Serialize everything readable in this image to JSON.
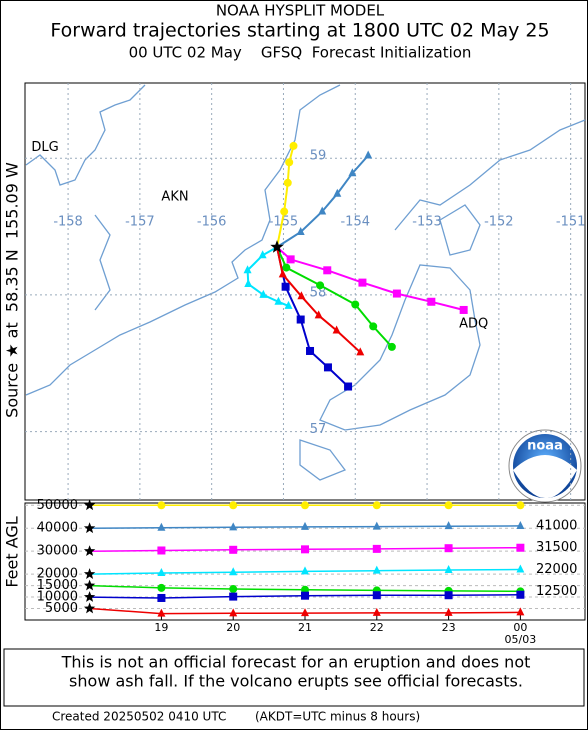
{
  "header": {
    "title": "NOAA HYSPLIT MODEL",
    "subtitle": "Forward trajectories starting at 1800 UTC 02 May 25",
    "init": "00 UTC 02 May    GFSQ  Forecast Initialization",
    "source": "Source ★ at  58.35 N  155.09 W"
  },
  "logo": "noaa",
  "chart_data": [
    {
      "type": "trajectory_map",
      "xlim": [
        -158.6,
        -150.8
      ],
      "ylim": [
        56.5,
        59.55
      ],
      "xticks": [
        -158,
        -157,
        -156,
        -155,
        -154,
        -153,
        -152,
        -151
      ],
      "yticks": [
        57,
        58,
        59
      ],
      "places": [
        {
          "name": "DLG",
          "lon": -158.46,
          "lat": 59.04
        },
        {
          "name": "AKN",
          "lon": -156.65,
          "lat": 58.68
        },
        {
          "name": "ADQ",
          "lon": -152.49,
          "lat": 57.75
        }
      ],
      "series": [
        {
          "color": "#ffee00",
          "marker": "circle",
          "lon": [
            -155.09,
            -154.99,
            -154.94,
            -154.92,
            -154.86
          ],
          "lat": [
            58.35,
            58.61,
            58.82,
            58.97,
            59.09
          ]
        },
        {
          "color": "#3f86c4",
          "marker": "triangle",
          "lon": [
            -155.09,
            -154.76,
            -154.46,
            -154.25,
            -154.04,
            -153.82
          ],
          "lat": [
            58.35,
            58.46,
            58.61,
            58.74,
            58.89,
            59.02
          ]
        },
        {
          "color": "#ff00ff",
          "marker": "square",
          "lon": [
            -155.09,
            -154.9,
            -154.39,
            -153.9,
            -153.42,
            -152.94,
            -152.49
          ],
          "lat": [
            58.35,
            58.26,
            58.18,
            58.09,
            58.01,
            57.95,
            57.89
          ]
        },
        {
          "color": "#00e5ff",
          "marker": "triangle",
          "lon": [
            -155.09,
            -155.29,
            -155.5,
            -155.49,
            -155.28,
            -155.07,
            -154.93
          ],
          "lat": [
            58.35,
            58.29,
            58.18,
            58.08,
            58.0,
            57.95,
            57.92
          ]
        },
        {
          "color": "#00dd00",
          "marker": "circle",
          "lon": [
            -155.09,
            -154.96,
            -154.49,
            -154.0,
            -153.75,
            -153.49
          ],
          "lat": [
            58.35,
            58.2,
            58.07,
            57.93,
            57.77,
            57.62
          ]
        },
        {
          "color": "#0000cc",
          "marker": "square",
          "lon": [
            -155.09,
            -154.97,
            -154.76,
            -154.63,
            -154.38,
            -154.1
          ],
          "lat": [
            58.35,
            58.06,
            57.82,
            57.59,
            57.47,
            57.33
          ]
        },
        {
          "color": "#ee0000",
          "marker": "triangle",
          "lon": [
            -155.09,
            -155.01,
            -154.75,
            -154.51,
            -154.26,
            -153.93
          ],
          "lat": [
            58.35,
            58.15,
            57.99,
            57.85,
            57.74,
            57.58
          ]
        }
      ]
    },
    {
      "type": "line",
      "ylabel": "Feet AGL",
      "ylim": [
        0,
        51000
      ],
      "yticks": [
        5000,
        10000,
        15000,
        20000,
        30000,
        40000,
        50000
      ],
      "xlim": [
        17.1,
        24.9
      ],
      "x": [
        18,
        19,
        20,
        21,
        22,
        23,
        24
      ],
      "xticks": [
        19,
        20,
        21,
        22,
        23,
        {
          "value": 24,
          "label": "00"
        }
      ],
      "x_date_label": "05/03",
      "grid": true,
      "series": [
        {
          "color": "#ffee00",
          "marker": "circle",
          "values": [
            50000,
            50000,
            50000,
            50000,
            50000,
            50000,
            50000
          ]
        },
        {
          "color": "#3f86c4",
          "marker": "triangle",
          "values": [
            40000,
            40200,
            40400,
            40600,
            40700,
            40900,
            41000
          ],
          "end_value": 41000
        },
        {
          "color": "#ff00ff",
          "marker": "square",
          "values": [
            30000,
            30300,
            30600,
            30800,
            31000,
            31300,
            31500
          ],
          "end_value": 31500
        },
        {
          "color": "#00e5ff",
          "marker": "triangle",
          "values": [
            20000,
            20500,
            20800,
            21200,
            21500,
            21800,
            22000
          ],
          "end_value": 22000
        },
        {
          "color": "#00dd00",
          "marker": "circle",
          "values": [
            15000,
            14000,
            13500,
            13200,
            12900,
            12700,
            12500
          ],
          "end_value": 12500
        },
        {
          "color": "#0000cc",
          "marker": "square",
          "values": [
            10000,
            9600,
            10200,
            10600,
            10800,
            10800,
            11000
          ]
        },
        {
          "color": "#ee0000",
          "marker": "triangle",
          "values": [
            5000,
            2800,
            2900,
            3000,
            3100,
            3100,
            3300
          ]
        }
      ]
    }
  ],
  "footer": {
    "disclaimer": [
      "This is not an official forecast for an eruption and does not",
      "show ash fall. If the volcano erupts see official forecasts."
    ],
    "created": "Created 20250502 0410 UTC",
    "note": "(AKDT=UTC minus 8 hours)"
  }
}
